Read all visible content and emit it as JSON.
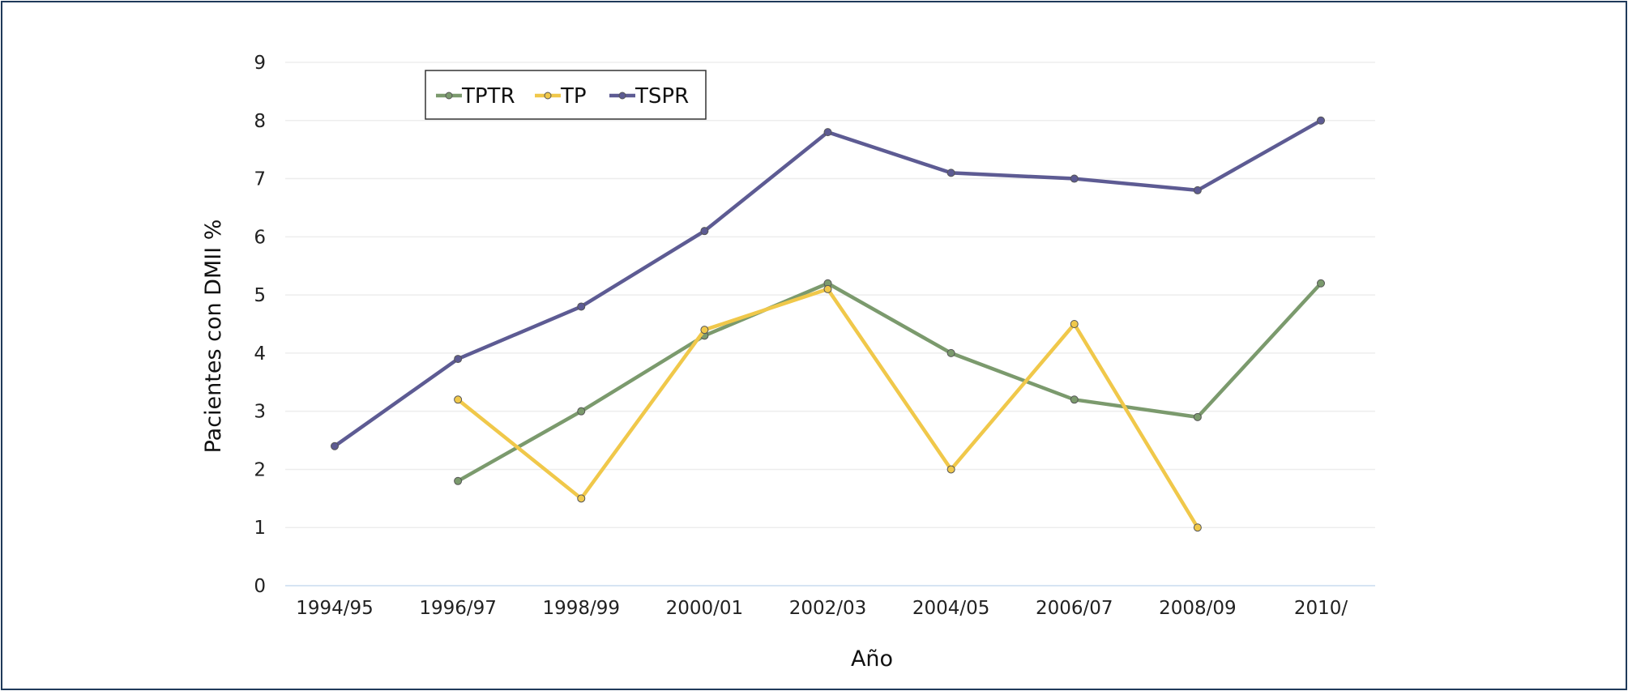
{
  "chart_data": {
    "type": "line",
    "xlabel": "Año",
    "ylabel": "Pacientes con DMII %",
    "categories": [
      "1994/95",
      "1996/97",
      "1998/99",
      "2000/01",
      "2002/03",
      "2004/05",
      "2006/07",
      "2008/09",
      "2010/"
    ],
    "ylim": [
      0,
      9
    ],
    "yticks": [
      "0",
      "1",
      "2",
      "3",
      "4",
      "5",
      "6",
      "7",
      "8",
      "9"
    ],
    "grid": true,
    "legend_position": "top-left",
    "series": [
      {
        "name": "TPTR",
        "color": "#7b9a6d",
        "values": [
          null,
          1.8,
          3.0,
          4.3,
          5.2,
          4.0,
          3.2,
          2.9,
          5.2
        ]
      },
      {
        "name": "TP",
        "color": "#f0c84a",
        "values": [
          null,
          3.2,
          1.5,
          4.4,
          5.1,
          2.0,
          4.5,
          1.0,
          null
        ]
      },
      {
        "name": "TSPR",
        "color": "#5d5b93",
        "values": [
          2.4,
          3.9,
          4.8,
          6.1,
          7.8,
          7.1,
          7.0,
          6.8,
          8.0
        ]
      }
    ]
  }
}
